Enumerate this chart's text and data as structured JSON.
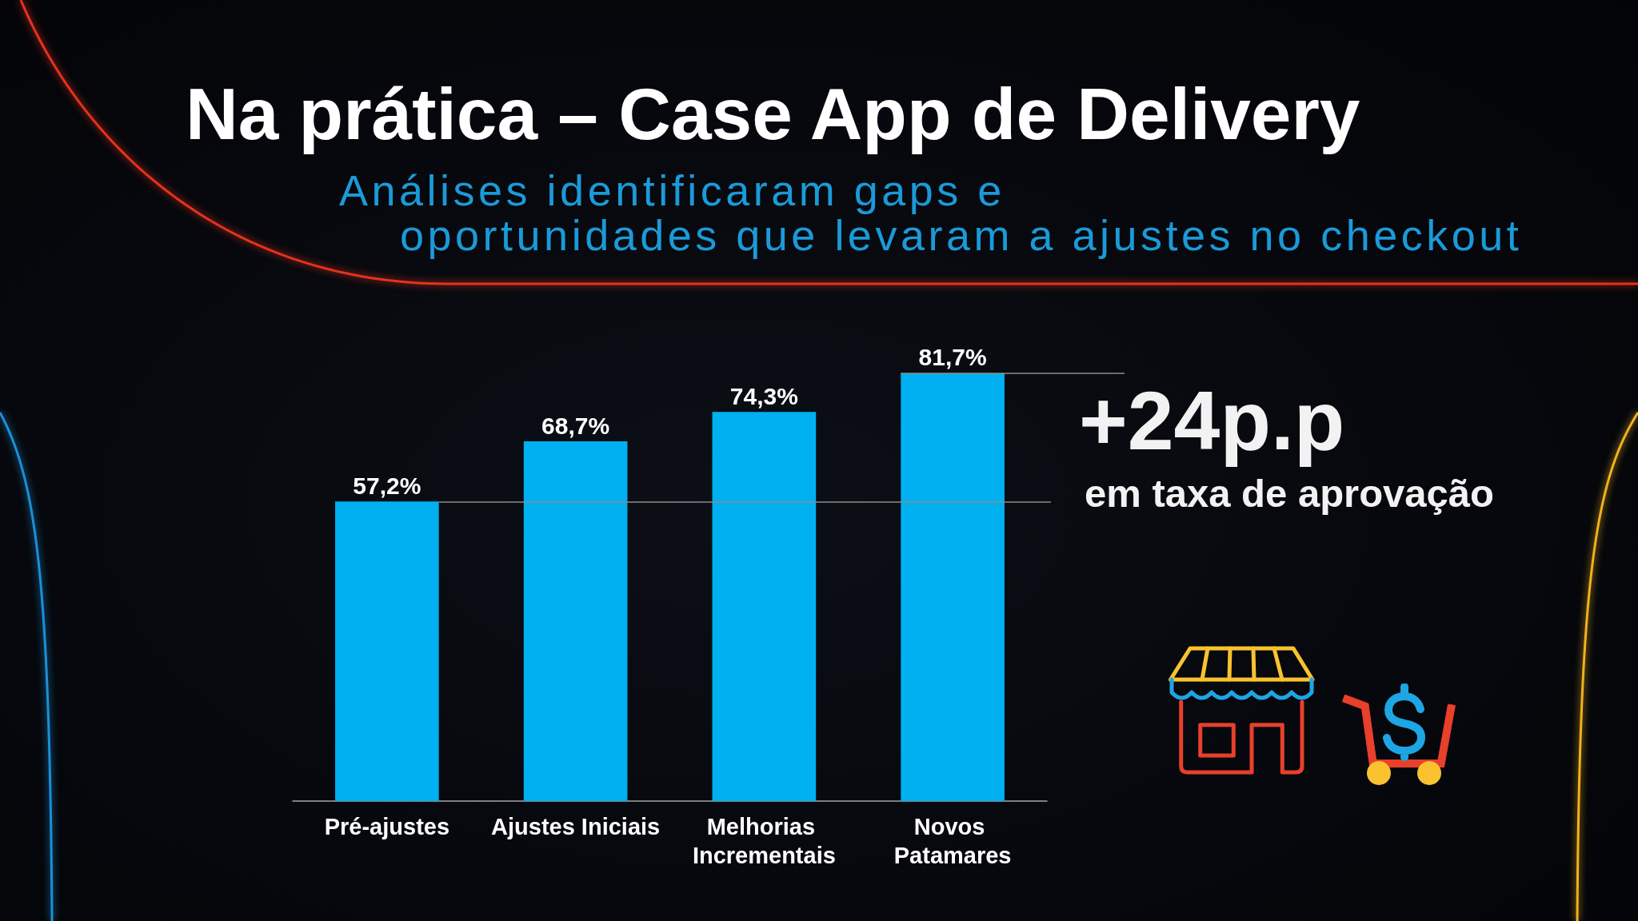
{
  "chart_data": {
    "type": "bar",
    "title": "Na prática – Case App de Delivery",
    "subtitle": "Análises identificaram gaps e\noportunidades que levaram a ajustes no checkout",
    "categories": [
      "Pré-ajustes",
      "Ajustes Iniciais",
      "Melhorias Incrementais",
      "Novos Patamares"
    ],
    "values": [
      57.2,
      68.7,
      74.3,
      81.7
    ],
    "color": "#00b0f0",
    "value_labels": [
      "57,2%",
      "68,7%",
      "74,3%",
      "81,7%"
    ],
    "tick_labels": "x",
    "ref_lines": [
      {
        "axis": "y",
        "value": 57.2,
        "color": "#8c8c8c"
      },
      {
        "axis": "y",
        "value": 81.7,
        "color": "#8c8c8c"
      }
    ],
    "annotations": [
      "+24p.p",
      "em taxa de aprovação"
    ]
  }
}
